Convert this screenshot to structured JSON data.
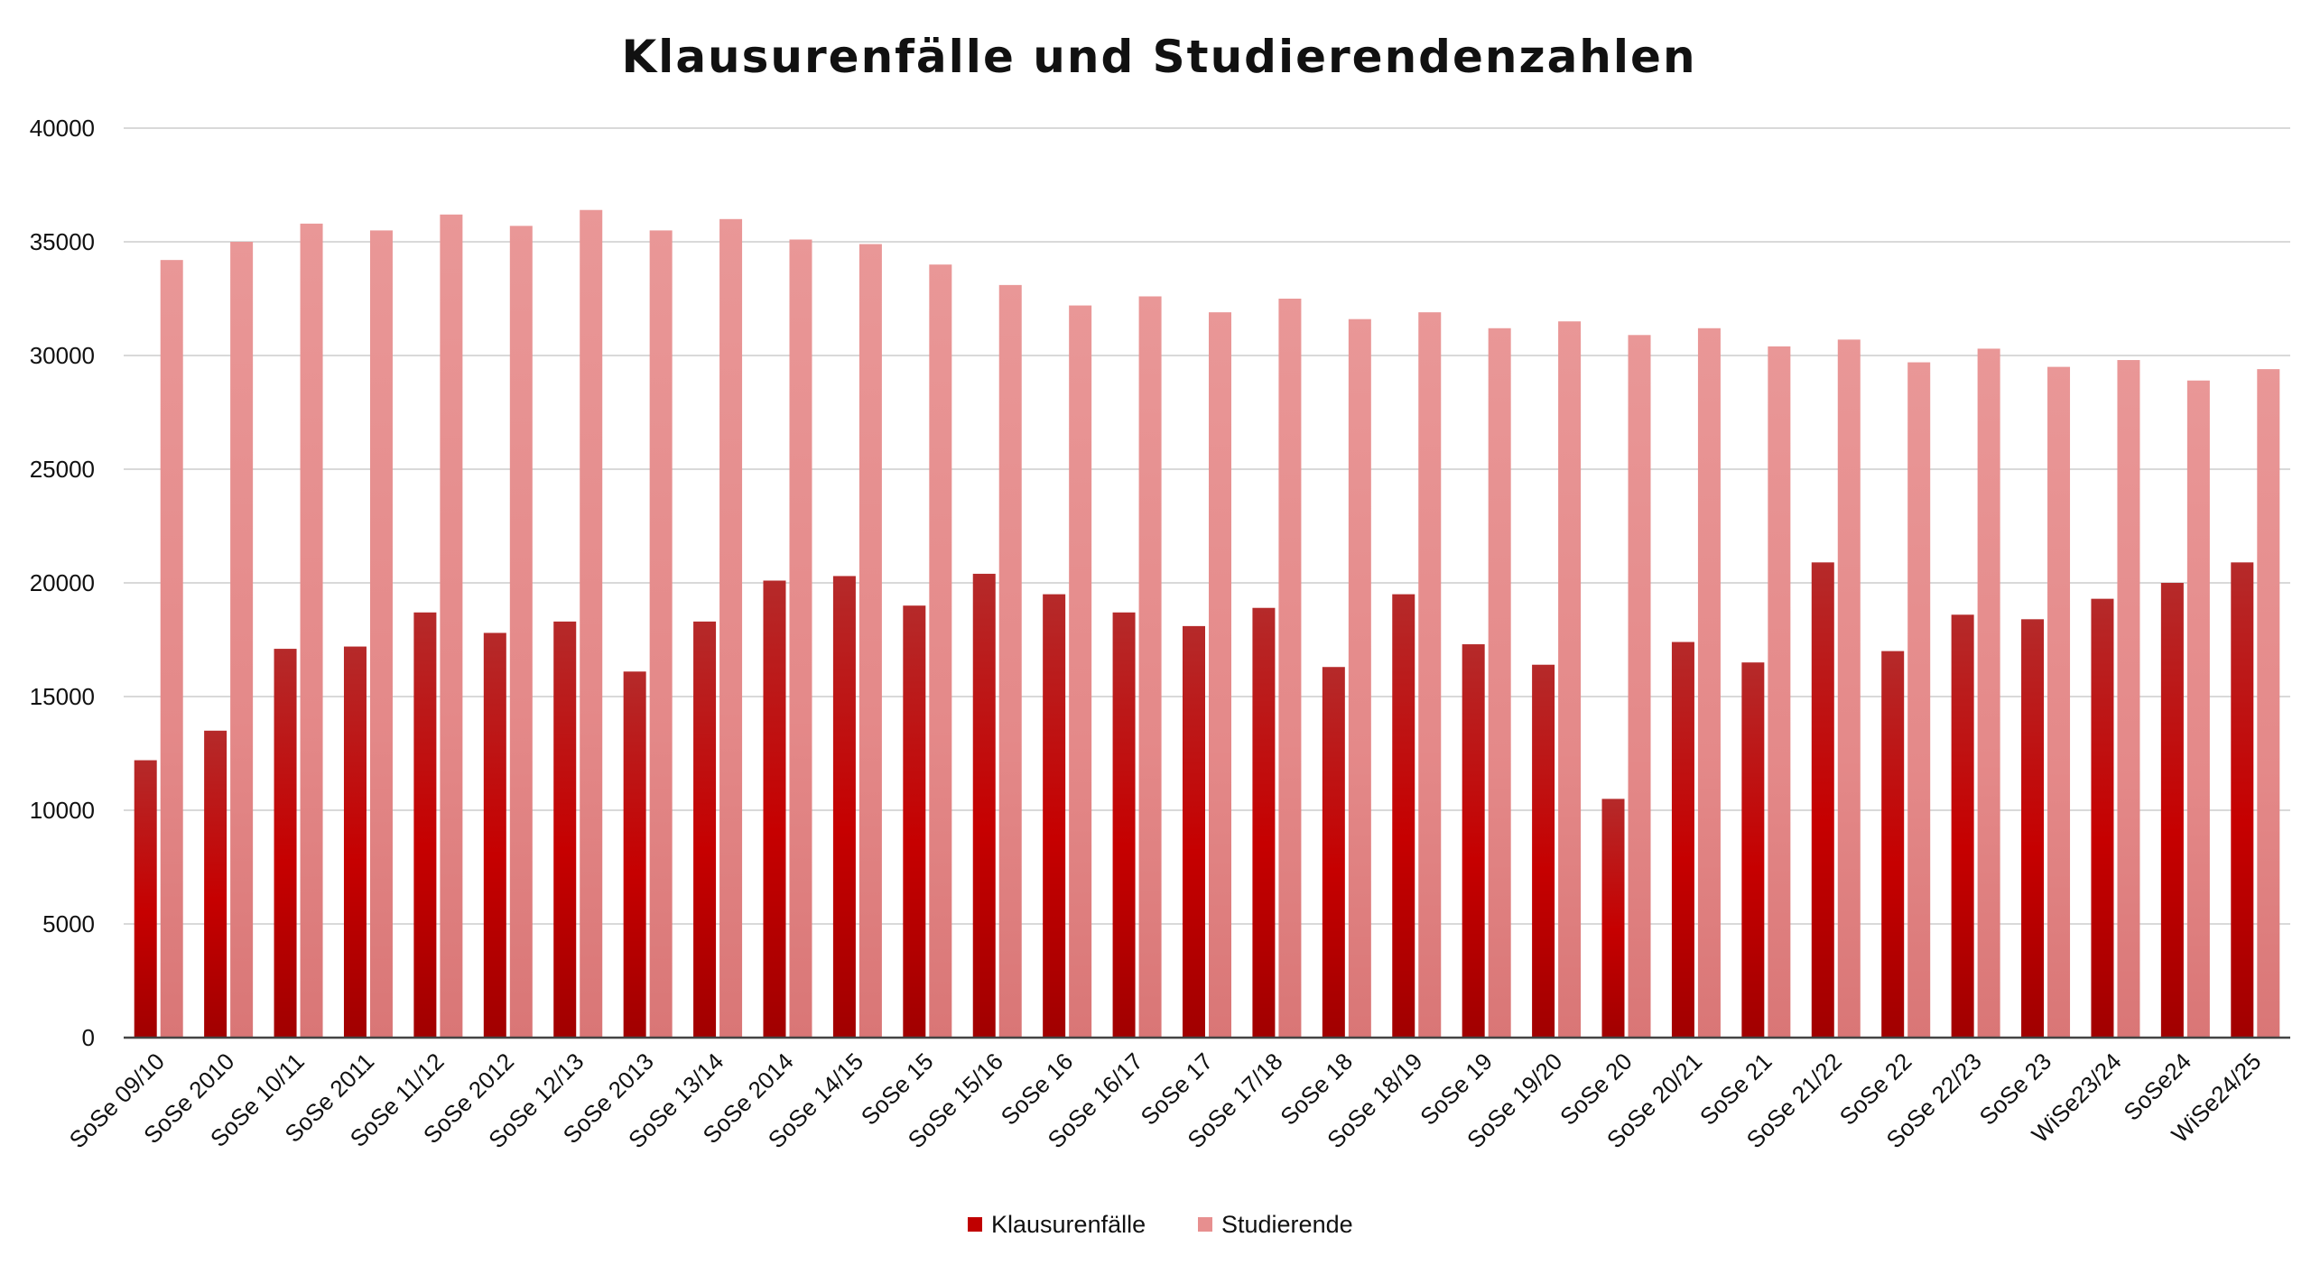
{
  "chart_data": {
    "type": "bar",
    "title": "Klausurenfälle und Studierendenzahlen",
    "xlabel": "",
    "ylabel": "",
    "ylim": [
      0,
      40000
    ],
    "yticks": [
      "0",
      "5000",
      "10000",
      "15000",
      "20000",
      "25000",
      "30000",
      "35000",
      "40000"
    ],
    "grid": true,
    "legend_position": "bottom",
    "categories": [
      "SoSe 09/10",
      "SoSe 2010",
      "SoSe 10/11",
      "SoSe 2011",
      "SoSe 11/12",
      "SoSe 2012",
      "SoSe 12/13",
      "SoSe 2013",
      "SoSe 13/14",
      "SoSe 2014",
      "SoSe 14/15",
      "SoSe 15",
      "SoSe 15/16",
      "SoSe 16",
      "SoSe 16/17",
      "SoSe 17",
      "SoSe 17/18",
      "SoSe 18",
      "SoSe 18/19",
      "SoSe 19",
      "SoSe 19/20",
      "SoSe 20",
      "SoSe 20/21",
      "SoSe 21",
      "SoSe 21/22",
      "SoSe 22",
      "SoSe 22/23",
      "SoSe 23",
      "WiSe23/24",
      "SoSe24",
      "WiSe24/25"
    ],
    "series": [
      {
        "name": "Klausurenfälle",
        "color": "#c00000",
        "values": [
          12200,
          13500,
          17100,
          17200,
          18700,
          17800,
          18300,
          16100,
          18300,
          20100,
          20300,
          19000,
          20400,
          19500,
          18700,
          18100,
          18900,
          16300,
          19500,
          17300,
          16400,
          10500,
          17400,
          16500,
          20900,
          17000,
          18600,
          18400,
          19300,
          20000,
          20900
        ]
      },
      {
        "name": "Studierende",
        "color": "#e78f8f",
        "values": [
          34200,
          35000,
          35800,
          35500,
          36200,
          35700,
          36400,
          35500,
          36000,
          35100,
          34900,
          34000,
          33100,
          32200,
          32600,
          31900,
          32500,
          31600,
          31900,
          31200,
          31500,
          30900,
          31200,
          30400,
          30700,
          29700,
          30300,
          29500,
          29800,
          28900,
          29400
        ]
      }
    ]
  }
}
